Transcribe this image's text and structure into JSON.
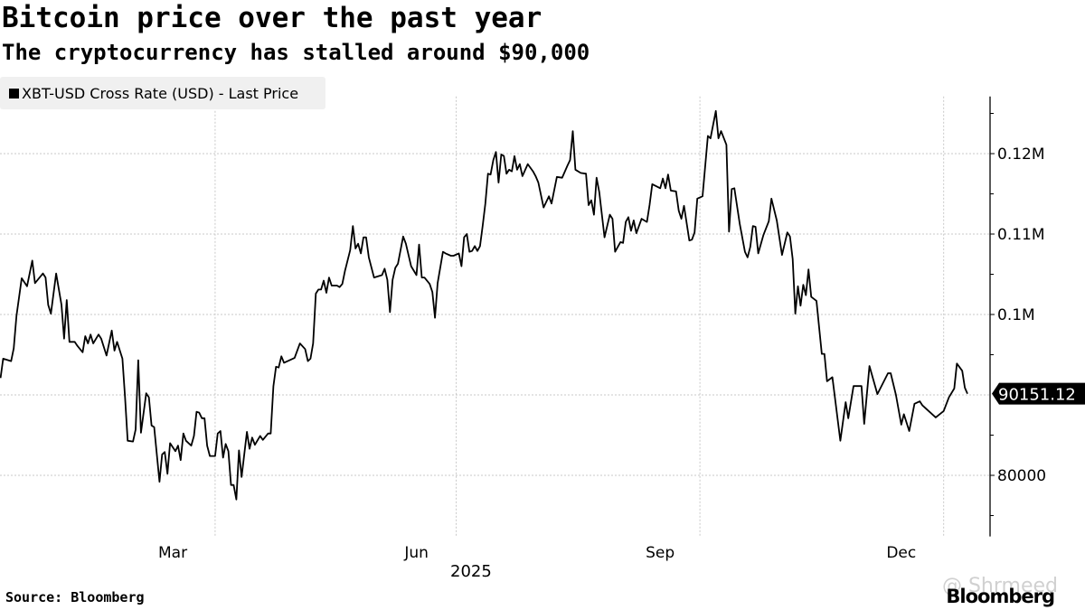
{
  "chart_data": {
    "type": "line",
    "title": "Bitcoin price over the past year",
    "subtitle": "The cryptocurrency has stalled around $90,000",
    "legend": {
      "label": "XBT-USD Cross Rate (USD) - Last Price",
      "placement": "top-left"
    },
    "x_unit": "days since 2025-01-01",
    "xlabel": "2025",
    "x_ticks": [
      {
        "day": 74,
        "label": "Mar"
      },
      {
        "day": 166,
        "label": "Jun"
      },
      {
        "day": 258,
        "label": "Sep"
      },
      {
        "day": 349,
        "label": "Dec"
      }
    ],
    "x_gridlines": [
      90,
      181,
      273,
      365
    ],
    "y_ticks": [
      {
        "value": 120000,
        "label": "0.12M"
      },
      {
        "value": 110000,
        "label": "0.11M"
      },
      {
        "value": 100000,
        "label": "0.1M"
      },
      {
        "value": 80000,
        "label": "80000"
      }
    ],
    "y_gridlines": [
      80000,
      90000,
      100000,
      110000,
      120000
    ],
    "y_minor_ticks": [
      75000,
      85000,
      95000,
      105000,
      115000,
      125000
    ],
    "ylim": [
      72400,
      127100
    ],
    "xlim": [
      8.8,
      382
    ],
    "grid": true,
    "last_value_label": "90151.12",
    "line_color": "#000000",
    "series": [
      {
        "name": "XBT-USD Cross Rate (USD) - Last Price",
        "points": [
          [
            9,
            92100
          ],
          [
            10,
            94500
          ],
          [
            13,
            94200
          ],
          [
            14,
            95800
          ],
          [
            15,
            99800
          ],
          [
            17,
            104500
          ],
          [
            19,
            103500
          ],
          [
            21,
            106700
          ],
          [
            22,
            103900
          ],
          [
            25,
            105100
          ],
          [
            26,
            104600
          ],
          [
            27,
            101200
          ],
          [
            28,
            100100
          ],
          [
            30,
            105100
          ],
          [
            32,
            101200
          ],
          [
            33,
            97000
          ],
          [
            34,
            101800
          ],
          [
            35,
            96600
          ],
          [
            37,
            96600
          ],
          [
            38,
            96100
          ],
          [
            40,
            95300
          ],
          [
            41,
            97300
          ],
          [
            42,
            96400
          ],
          [
            43,
            97500
          ],
          [
            44,
            96400
          ],
          [
            46,
            97500
          ],
          [
            47,
            97000
          ],
          [
            49,
            94900
          ],
          [
            51,
            98000
          ],
          [
            52,
            95500
          ],
          [
            53,
            96600
          ],
          [
            55,
            94500
          ],
          [
            56,
            89700
          ],
          [
            57,
            84300
          ],
          [
            59,
            84200
          ],
          [
            60,
            85700
          ],
          [
            61,
            94300
          ],
          [
            62,
            85300
          ],
          [
            64,
            90200
          ],
          [
            65,
            89700
          ],
          [
            66,
            86200
          ],
          [
            67,
            86000
          ],
          [
            69,
            79200
          ],
          [
            70,
            82600
          ],
          [
            71,
            82900
          ],
          [
            72,
            80200
          ],
          [
            73,
            84000
          ],
          [
            75,
            83000
          ],
          [
            76,
            83700
          ],
          [
            77,
            81900
          ],
          [
            78,
            85200
          ],
          [
            79,
            84300
          ],
          [
            81,
            83700
          ],
          [
            82,
            84900
          ],
          [
            83,
            87900
          ],
          [
            84,
            87800
          ],
          [
            85,
            87100
          ],
          [
            86,
            87100
          ],
          [
            87,
            83700
          ],
          [
            88,
            82400
          ],
          [
            90,
            82400
          ],
          [
            91,
            85200
          ],
          [
            92,
            85500
          ],
          [
            93,
            82200
          ],
          [
            94,
            83900
          ],
          [
            95,
            83000
          ],
          [
            96,
            78800
          ],
          [
            97,
            78800
          ],
          [
            98,
            77000
          ],
          [
            99,
            83100
          ],
          [
            100,
            79800
          ],
          [
            102,
            85400
          ],
          [
            103,
            83300
          ],
          [
            104,
            84700
          ],
          [
            105,
            83800
          ],
          [
            107,
            84900
          ],
          [
            108,
            84400
          ],
          [
            110,
            85200
          ],
          [
            111,
            85200
          ],
          [
            112,
            91100
          ],
          [
            113,
            93500
          ],
          [
            114,
            93400
          ],
          [
            115,
            94800
          ],
          [
            116,
            94000
          ],
          [
            120,
            94600
          ],
          [
            122,
            96400
          ],
          [
            124,
            95700
          ],
          [
            125,
            94200
          ],
          [
            126,
            94500
          ],
          [
            127,
            96400
          ],
          [
            128,
            102600
          ],
          [
            129,
            103100
          ],
          [
            130,
            103100
          ],
          [
            131,
            104200
          ],
          [
            132,
            102700
          ],
          [
            133,
            104600
          ],
          [
            134,
            103600
          ],
          [
            136,
            103600
          ],
          [
            137,
            103400
          ],
          [
            138,
            103800
          ],
          [
            139,
            105400
          ],
          [
            141,
            108000
          ],
          [
            142,
            111000
          ],
          [
            143,
            108200
          ],
          [
            144,
            108800
          ],
          [
            145,
            107600
          ],
          [
            146,
            109600
          ],
          [
            147,
            109600
          ],
          [
            148,
            107100
          ],
          [
            150,
            104600
          ],
          [
            153,
            104900
          ],
          [
            154,
            105700
          ],
          [
            155,
            104300
          ],
          [
            156,
            100300
          ],
          [
            157,
            104300
          ],
          [
            158,
            105800
          ],
          [
            159,
            106300
          ],
          [
            161,
            109700
          ],
          [
            162,
            108800
          ],
          [
            164,
            106000
          ],
          [
            166,
            104900
          ],
          [
            167,
            108700
          ],
          [
            168,
            104600
          ],
          [
            169,
            104600
          ],
          [
            171,
            103800
          ],
          [
            172,
            102800
          ],
          [
            173,
            99600
          ],
          [
            174,
            103900
          ],
          [
            176,
            107800
          ],
          [
            177,
            107600
          ],
          [
            179,
            107300
          ],
          [
            180,
            107300
          ],
          [
            182,
            107600
          ],
          [
            183,
            106000
          ],
          [
            184,
            109600
          ],
          [
            185,
            110000
          ],
          [
            186,
            107800
          ],
          [
            187,
            107900
          ],
          [
            188,
            108500
          ],
          [
            189,
            107900
          ],
          [
            190,
            108500
          ],
          [
            191,
            111000
          ],
          [
            192,
            113800
          ],
          [
            193,
            117500
          ],
          [
            194,
            117400
          ],
          [
            195,
            119200
          ],
          [
            196,
            120200
          ],
          [
            197,
            116400
          ],
          [
            198,
            119900
          ],
          [
            199,
            119700
          ],
          [
            200,
            117500
          ],
          [
            201,
            118000
          ],
          [
            202,
            117800
          ],
          [
            203,
            119700
          ],
          [
            204,
            118000
          ],
          [
            205,
            118700
          ],
          [
            206,
            117200
          ],
          [
            208,
            118700
          ],
          [
            210,
            117800
          ],
          [
            211,
            117200
          ],
          [
            212,
            116400
          ],
          [
            214,
            113300
          ],
          [
            216,
            114700
          ],
          [
            217,
            113800
          ],
          [
            219,
            117100
          ],
          [
            221,
            117000
          ],
          [
            223,
            118500
          ],
          [
            224,
            119200
          ],
          [
            225,
            122800
          ],
          [
            226,
            118000
          ],
          [
            228,
            117600
          ],
          [
            230,
            117500
          ],
          [
            231,
            113600
          ],
          [
            232,
            114200
          ],
          [
            233,
            112400
          ],
          [
            234,
            117000
          ],
          [
            235,
            115200
          ],
          [
            237,
            109600
          ],
          [
            239,
            112400
          ],
          [
            240,
            111900
          ],
          [
            241,
            107800
          ],
          [
            243,
            109000
          ],
          [
            244,
            108900
          ],
          [
            245,
            111500
          ],
          [
            246,
            112100
          ],
          [
            247,
            110400
          ],
          [
            248,
            111700
          ],
          [
            249,
            110100
          ],
          [
            251,
            111900
          ],
          [
            253,
            111500
          ],
          [
            254,
            113600
          ],
          [
            255,
            116200
          ],
          [
            258,
            115700
          ],
          [
            259,
            116900
          ],
          [
            260,
            115700
          ],
          [
            261,
            117400
          ],
          [
            262,
            115400
          ],
          [
            264,
            115300
          ],
          [
            265,
            112900
          ],
          [
            266,
            111900
          ],
          [
            267,
            113500
          ],
          [
            269,
            109200
          ],
          [
            270,
            109300
          ],
          [
            271,
            110200
          ],
          [
            272,
            114400
          ],
          [
            274,
            114700
          ],
          [
            276,
            122200
          ],
          [
            277,
            121900
          ],
          [
            279,
            125300
          ],
          [
            280,
            121900
          ],
          [
            281,
            122800
          ],
          [
            283,
            121100
          ],
          [
            284,
            110300
          ],
          [
            285,
            115600
          ],
          [
            286,
            115700
          ],
          [
            288,
            111300
          ],
          [
            290,
            107800
          ],
          [
            291,
            107100
          ],
          [
            292,
            108400
          ],
          [
            293,
            111000
          ],
          [
            294,
            110900
          ],
          [
            295,
            107600
          ],
          [
            297,
            109900
          ],
          [
            299,
            111600
          ],
          [
            300,
            114400
          ],
          [
            302,
            111700
          ],
          [
            304,
            107400
          ],
          [
            306,
            110200
          ],
          [
            307,
            109700
          ],
          [
            308,
            106900
          ],
          [
            309,
            100100
          ],
          [
            310,
            103500
          ],
          [
            311,
            101100
          ],
          [
            312,
            103700
          ],
          [
            313,
            102400
          ],
          [
            314,
            105600
          ],
          [
            315,
            102200
          ],
          [
            317,
            101700
          ],
          [
            319,
            95100
          ],
          [
            320,
            95100
          ],
          [
            321,
            91700
          ],
          [
            323,
            92200
          ],
          [
            326,
            84300
          ],
          [
            328,
            89100
          ],
          [
            329,
            87100
          ],
          [
            331,
            91100
          ],
          [
            334,
            91100
          ],
          [
            335,
            86400
          ],
          [
            337,
            93600
          ],
          [
            340,
            90100
          ],
          [
            344,
            92700
          ],
          [
            345,
            92700
          ],
          [
            347,
            90000
          ],
          [
            349,
            86300
          ],
          [
            350,
            87600
          ],
          [
            352,
            85500
          ],
          [
            354,
            88900
          ],
          [
            356,
            89200
          ],
          [
            357,
            88700
          ],
          [
            362,
            87200
          ],
          [
            365,
            88000
          ],
          [
            367,
            89700
          ],
          [
            369,
            90800
          ],
          [
            370,
            93900
          ],
          [
            372,
            93000
          ],
          [
            373,
            90900
          ],
          [
            374,
            90151.12
          ]
        ]
      }
    ],
    "source": "Source: Bloomberg",
    "logo": "Bloomberg",
    "watermark": "@ Shrmeed"
  }
}
